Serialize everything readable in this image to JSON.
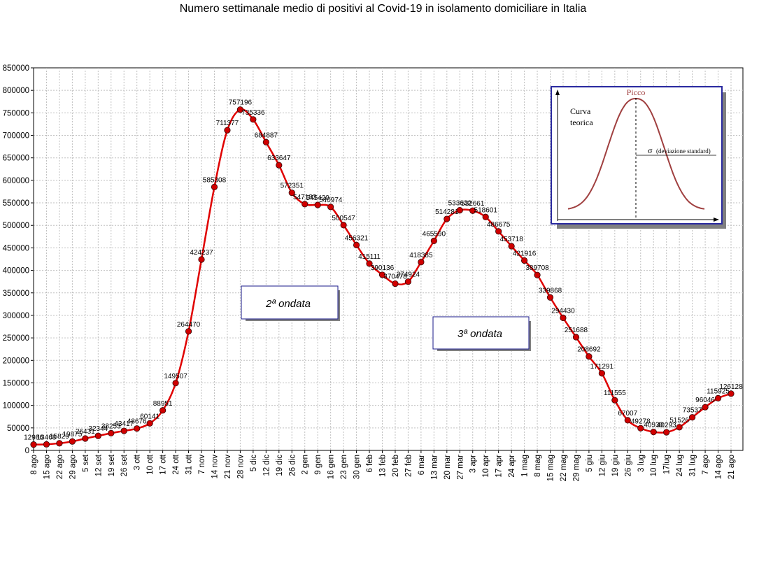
{
  "chart_data": {
    "type": "line",
    "title": "Numero settimanale medio di positivi al Covid-19  in isolamento domiciliare in Italia",
    "xlabel": "",
    "ylabel": "",
    "ylim": [
      0,
      850000
    ],
    "y_ticks": [
      "0",
      "50000",
      "100000",
      "150000",
      "200000",
      "250000",
      "300000",
      "350000",
      "400000",
      "450000",
      "500000",
      "550000",
      "600000",
      "650000",
      "700000",
      "750000",
      "800000",
      "850000"
    ],
    "grid": true,
    "categories": [
      "8 ago",
      "15 ago",
      "22 ago",
      "29 ago",
      "5 set",
      "12 set",
      "19 set",
      "26 set",
      "3 ott",
      "10 ott",
      "17 ott",
      "24 ott",
      "31 ott",
      "7 nov",
      "14 nov",
      "21 nov",
      "28 nov",
      "5 dic",
      "12 dic",
      "19 dic",
      "26 dic",
      "2 gen",
      "9 gen",
      "16 gen",
      "23 gen",
      "30 gen",
      "6 feb",
      "13 feb",
      "20 feb",
      "27 feb",
      "6 mar",
      "13 mar",
      "20 mar",
      "27 mar",
      "3 apr",
      "10 apr",
      "17 apr",
      "24 apr",
      "1 mag",
      "8 mag",
      "15 mag",
      "22 mag",
      "29 mag",
      "5 giu",
      "12 giu",
      "19 giu",
      "26 giu",
      "3 lug",
      "10 lug",
      "17lug",
      "24 lug",
      "31 lug",
      "7 ago",
      "14 ago",
      "21 ago"
    ],
    "series": [
      {
        "color": "#e00000",
        "marker_color": "#d00000",
        "values": [
          12986,
          13468,
          15829,
          19875,
          26431,
          32344,
          38253,
          43417,
          48676,
          60141,
          88951,
          149507,
          264470,
          424237,
          585308,
          711377,
          757196,
          735336,
          684887,
          633647,
          572351,
          547183,
          545420,
          540974,
          500547,
          456321,
          415111,
          390136,
          370478,
          374924,
          418385,
          465590,
          514281,
          533632,
          532661,
          518601,
          486675,
          453718,
          421916,
          389708,
          339868,
          294430,
          251688,
          208692,
          171291,
          111555,
          67007,
          49278,
          40930,
          40293,
          51526,
          73537,
          96046,
          115925,
          126128
        ],
        "labels": [
          "12986",
          "13468",
          "15829",
          "19875",
          "26431",
          "32344",
          "38253",
          "43417",
          "48676",
          "60141",
          "88951",
          "149507",
          "264470",
          "424237",
          "585308",
          "711377",
          "757196",
          "735336",
          "684887",
          "633647",
          "572351",
          "547183",
          "545420",
          "540974",
          "500547",
          "456321",
          "415111",
          "390136",
          "370478",
          "374924",
          "418385",
          "465590",
          "514281",
          "533632",
          "532661",
          "518601",
          "486675",
          "453718",
          "421916",
          "389708",
          "339868",
          "294430",
          "251688",
          "208692",
          "171291",
          "111555",
          "67007",
          "49278",
          "40930",
          "40293",
          "51526",
          "73537",
          "96046",
          "115925",
          "126128"
        ]
      }
    ],
    "annotations": [
      "2ª ondata",
      "3ª ondata"
    ],
    "inset": {
      "peak_label": "Picco",
      "curve_label_line1": "Curva",
      "curve_label_line2": "teorica",
      "sigma_symbol": "σ",
      "sigma_label": "(deviazione standard)",
      "curve_color": "#a04040",
      "frame_color": "#2a2aa0"
    }
  }
}
